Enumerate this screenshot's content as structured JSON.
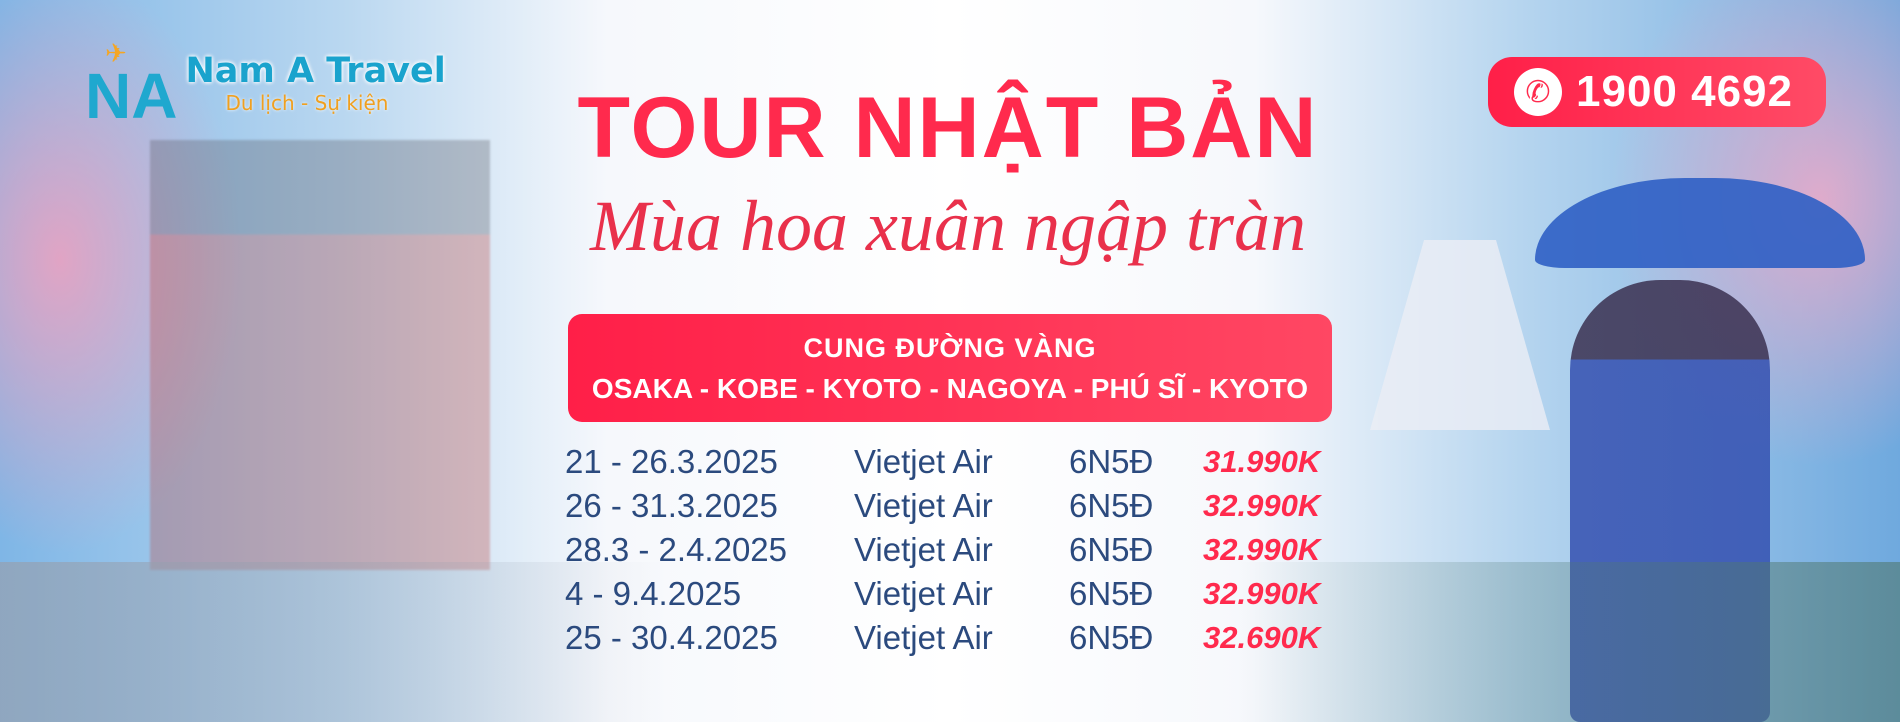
{
  "brand": {
    "logo_letters": "NA",
    "name": "Nam A Travel",
    "tagline": "Du lịch - Sự kiện"
  },
  "hotline": {
    "icon": "phone-icon",
    "number": "1900 4692"
  },
  "headline": {
    "title": "TOUR NHẬT BẢN",
    "subtitle": "Mùa hoa xuân ngập tràn"
  },
  "route": {
    "label": "CUNG ĐƯỜNG VÀNG",
    "cities": "OSAKA - KOBE - KYOTO - NAGOYA - PHÚ SĨ - KYOTO"
  },
  "departures": [
    {
      "dates": "21 - 26.3.2025",
      "airline": "Vietjet Air",
      "duration": "6N5Đ",
      "price": "31.990K"
    },
    {
      "dates": "26 - 31.3.2025",
      "airline": "Vietjet Air",
      "duration": "6N5Đ",
      "price": "32.990K"
    },
    {
      "dates": "28.3 - 2.4.2025",
      "airline": "Vietjet Air",
      "duration": "6N5Đ",
      "price": "32.990K"
    },
    {
      "dates": "4 - 9.4.2025",
      "airline": "Vietjet Air",
      "duration": "6N5Đ",
      "price": "32.990K"
    },
    {
      "dates": "25 - 30.4.2025",
      "airline": "Vietjet Air",
      "duration": "6N5Đ",
      "price": "32.690K"
    }
  ],
  "colors": {
    "accent": "#ff2a4d",
    "text": "#2b4a7e",
    "logo": "#1fa8cf",
    "logo_secondary": "#f5a623"
  }
}
